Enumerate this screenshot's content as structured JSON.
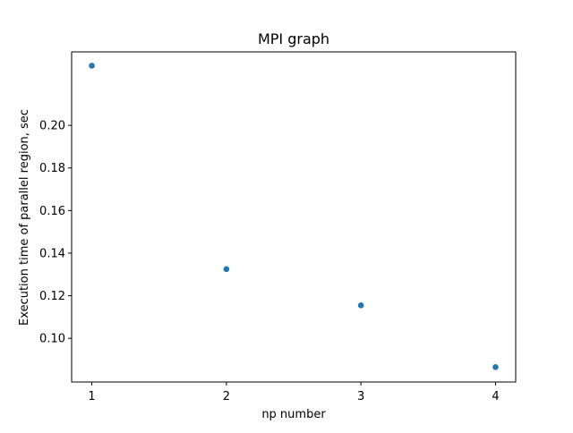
{
  "chart_data": {
    "type": "scatter",
    "title": "MPI graph",
    "xlabel": "np number",
    "ylabel": "Execution time of parallel region, sec",
    "x": [
      1,
      2,
      3,
      4
    ],
    "y": [
      0.228,
      0.1325,
      0.1155,
      0.0865
    ],
    "xlim": [
      0.85,
      4.15
    ],
    "ylim": [
      0.0795,
      0.2345
    ],
    "xticks": [
      1,
      2,
      3,
      4
    ],
    "yticks": [
      0.1,
      0.12,
      0.14,
      0.16,
      0.18,
      0.2
    ],
    "xtick_labels": [
      "1",
      "2",
      "3",
      "4"
    ],
    "ytick_labels": [
      "0.10",
      "0.12",
      "0.14",
      "0.16",
      "0.18",
      "0.20"
    ],
    "marker_color": "#1f77b4",
    "grid": false,
    "legend": "none"
  }
}
